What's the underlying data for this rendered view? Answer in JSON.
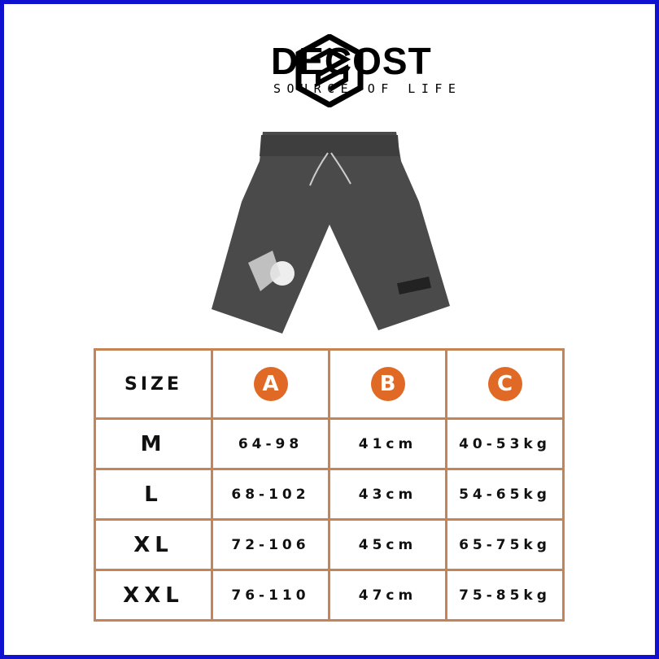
{
  "brand": {
    "name": "DECOST",
    "tagline": "SOURCE OF LIFE"
  },
  "colors": {
    "accent": "#e06a25",
    "border": "#c48456",
    "frame": "#1010d0",
    "garment": "#4a4a4a"
  },
  "size_table": {
    "headers": [
      "SIZE",
      "A",
      "B",
      "C"
    ],
    "rows": [
      [
        "M",
        "64-98",
        "41cm",
        "40-53kg"
      ],
      [
        "L",
        "68-102",
        "43cm",
        "54-65kg"
      ],
      [
        "XL",
        "72-106",
        "45cm",
        "65-75kg"
      ],
      [
        "XXL",
        "76-110",
        "47cm",
        "75-85kg"
      ]
    ]
  }
}
